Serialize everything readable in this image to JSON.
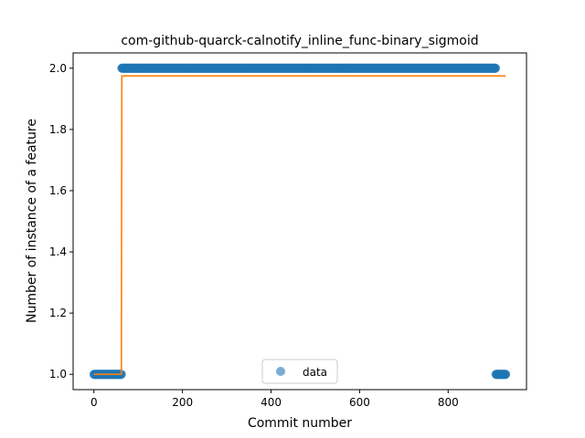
{
  "chart_data": {
    "type": "scatter",
    "title": "com-github-quarck-calnotify_inline_func-binary_sigmoid",
    "xlabel": "Commit number",
    "ylabel": "Number of instance of a feature",
    "xlim": [
      -47,
      977
    ],
    "ylim": [
      0.95,
      2.05
    ],
    "xticks": [
      0,
      200,
      400,
      600,
      800
    ],
    "yticks": [
      1.0,
      1.2,
      1.4,
      1.6,
      1.8,
      2.0
    ],
    "xtick_labels": [
      "0",
      "200",
      "400",
      "600",
      "800"
    ],
    "ytick_labels": [
      "1.0",
      "1.2",
      "1.4",
      "1.6",
      "1.8",
      "2.0"
    ],
    "legend": {
      "position": "lower-center",
      "entries": [
        "data"
      ]
    },
    "series": [
      {
        "name": "data",
        "kind": "scatter",
        "color": "#1f77b4",
        "segments": [
          {
            "x_start": 0,
            "x_end": 62,
            "y": 1.0
          },
          {
            "x_start": 63,
            "x_end": 907,
            "y": 2.0
          },
          {
            "x_start": 908,
            "x_end": 930,
            "y": 1.0
          }
        ]
      },
      {
        "kind": "line",
        "color": "#ff7f0e",
        "points": [
          [
            0,
            1.0
          ],
          [
            62,
            1.0
          ],
          [
            63,
            1.975
          ],
          [
            930,
            1.975
          ]
        ]
      }
    ]
  }
}
